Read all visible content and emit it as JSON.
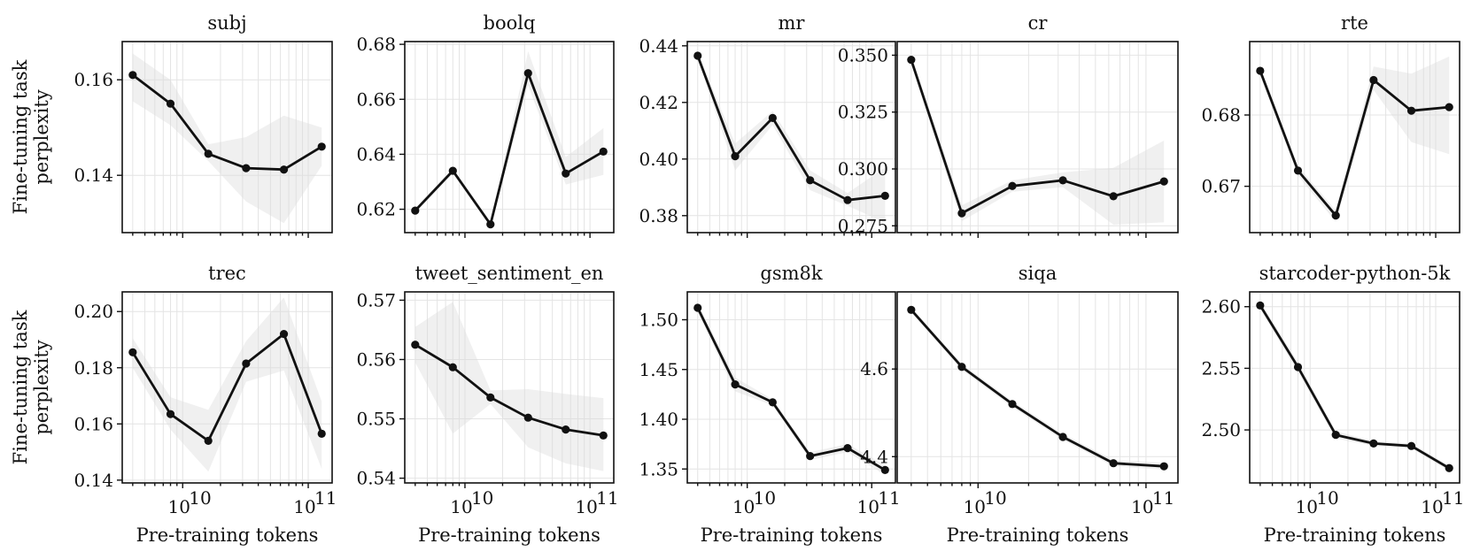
{
  "figure": {
    "ylabel": "Fine-tuning task\nperplexity",
    "xlabel": "Pre-training tokens"
  },
  "chart_data": [
    {
      "type": "line",
      "title": "subj",
      "xscale": "log",
      "x": [
        4000000000.0,
        8000000000.0,
        16000000000.0,
        32000000000.0,
        64000000000.0,
        128000000000.0
      ],
      "values": [
        0.161,
        0.155,
        0.1445,
        0.1415,
        0.1412,
        0.146
      ],
      "lower": [
        0.1555,
        0.1505,
        0.143,
        0.1345,
        0.13,
        0.142
      ],
      "upper": [
        0.1655,
        0.16,
        0.1465,
        0.148,
        0.1525,
        0.15
      ],
      "ylim": [
        0.128,
        0.168
      ],
      "yticks": [
        0.14,
        0.16
      ],
      "ytick_labels": [
        "0.14",
        "0.16"
      ]
    },
    {
      "type": "line",
      "title": "boolq",
      "xscale": "log",
      "x": [
        4000000000.0,
        8000000000.0,
        16000000000.0,
        32000000000.0,
        64000000000.0,
        128000000000.0
      ],
      "values": [
        0.6195,
        0.634,
        0.6145,
        0.6695,
        0.633,
        0.641
      ],
      "lower": [
        0.6185,
        0.633,
        0.614,
        0.665,
        0.629,
        0.6325
      ],
      "upper": [
        0.6205,
        0.635,
        0.615,
        0.6775,
        0.639,
        0.6495
      ],
      "ylim": [
        0.6115,
        0.681
      ],
      "yticks": [
        0.62,
        0.64,
        0.66,
        0.68
      ],
      "ytick_labels": [
        "0.62",
        "0.64",
        "0.66",
        "0.68"
      ]
    },
    {
      "type": "line",
      "title": "mr",
      "xscale": "log",
      "x": [
        4000000000.0,
        8000000000.0,
        16000000000.0,
        32000000000.0,
        64000000000.0,
        128000000000.0
      ],
      "values": [
        0.4365,
        0.401,
        0.4145,
        0.3925,
        0.3855,
        0.387
      ],
      "lower": [
        0.4355,
        0.396,
        0.412,
        0.389,
        0.3835,
        0.3775
      ],
      "upper": [
        0.4375,
        0.4055,
        0.417,
        0.396,
        0.388,
        0.397
      ],
      "ylim": [
        0.374,
        0.4415
      ],
      "yticks": [
        0.38,
        0.4,
        0.42,
        0.44
      ],
      "ytick_labels": [
        "0.38",
        "0.40",
        "0.42",
        "0.44"
      ]
    },
    {
      "type": "line",
      "title": "cr",
      "xscale": "log",
      "x": [
        4000000000.0,
        8000000000.0,
        16000000000.0,
        32000000000.0,
        64000000000.0,
        128000000000.0
      ],
      "values": [
        0.348,
        0.2805,
        0.2925,
        0.295,
        0.288,
        0.2945
      ],
      "lower": [
        0.346,
        0.277,
        0.29,
        0.292,
        0.2755,
        0.2765
      ],
      "upper": [
        0.35,
        0.284,
        0.295,
        0.2985,
        0.3005,
        0.3125
      ],
      "ylim": [
        0.272,
        0.356
      ],
      "yticks": [
        0.275,
        0.3,
        0.325,
        0.35
      ],
      "ytick_labels": [
        "0.275",
        "0.300",
        "0.325",
        "0.350"
      ]
    },
    {
      "type": "line",
      "title": "rte",
      "xscale": "log",
      "x": [
        4000000000.0,
        8000000000.0,
        16000000000.0,
        32000000000.0,
        64000000000.0,
        128000000000.0
      ],
      "values": [
        0.6862,
        0.6722,
        0.6659,
        0.6849,
        0.6806,
        0.6811
      ],
      "lower": [
        0.6855,
        0.6715,
        0.665,
        0.6835,
        0.6762,
        0.6745
      ],
      "upper": [
        0.6868,
        0.6728,
        0.6666,
        0.6868,
        0.6858,
        0.6882
      ],
      "ylim": [
        0.6635,
        0.6903
      ],
      "yticks": [
        0.67,
        0.68
      ],
      "ytick_labels": [
        "0.67",
        "0.68"
      ]
    },
    {
      "type": "line",
      "title": "trec",
      "xscale": "log",
      "x": [
        4000000000.0,
        8000000000.0,
        16000000000.0,
        32000000000.0,
        64000000000.0,
        128000000000.0
      ],
      "values": [
        0.1855,
        0.1635,
        0.154,
        0.1815,
        0.192,
        0.1565
      ],
      "lower": [
        0.18,
        0.158,
        0.143,
        0.175,
        0.179,
        0.144
      ],
      "upper": [
        0.1905,
        0.1695,
        0.165,
        0.1895,
        0.205,
        0.168
      ],
      "ylim": [
        0.139,
        0.207
      ],
      "yticks": [
        0.14,
        0.16,
        0.18,
        0.2
      ],
      "ytick_labels": [
        "0.14",
        "0.16",
        "0.18",
        "0.20"
      ]
    },
    {
      "type": "line",
      "title": "tweet_sentiment_en",
      "xscale": "log",
      "x": [
        4000000000.0,
        8000000000.0,
        16000000000.0,
        32000000000.0,
        64000000000.0,
        128000000000.0
      ],
      "values": [
        0.5625,
        0.5587,
        0.5536,
        0.5502,
        0.5482,
        0.5472
      ],
      "lower": [
        0.5595,
        0.5475,
        0.5525,
        0.5452,
        0.5425,
        0.5412
      ],
      "upper": [
        0.5655,
        0.5697,
        0.5548,
        0.555,
        0.5542,
        0.5535
      ],
      "ylim": [
        0.5392,
        0.5714
      ],
      "yticks": [
        0.54,
        0.55,
        0.56,
        0.57
      ],
      "ytick_labels": [
        "0.54",
        "0.55",
        "0.56",
        "0.57"
      ]
    },
    {
      "type": "line",
      "title": "gsm8k",
      "xscale": "log",
      "x": [
        4000000000.0,
        8000000000.0,
        16000000000.0,
        32000000000.0,
        64000000000.0,
        128000000000.0
      ],
      "values": [
        1.512,
        1.435,
        1.417,
        1.363,
        1.371,
        1.349
      ],
      "lower": [
        1.508,
        1.428,
        1.414,
        1.359,
        1.367,
        1.344
      ],
      "upper": [
        1.516,
        1.442,
        1.42,
        1.367,
        1.375,
        1.354
      ],
      "ylim": [
        1.336,
        1.528
      ],
      "yticks": [
        1.35,
        1.4,
        1.45,
        1.5
      ],
      "ytick_labels": [
        "1.35",
        "1.40",
        "1.45",
        "1.50"
      ]
    },
    {
      "type": "line",
      "title": "siqa",
      "xscale": "log",
      "x": [
        4000000000.0,
        8000000000.0,
        16000000000.0,
        32000000000.0,
        64000000000.0,
        128000000000.0
      ],
      "values": [
        4.735,
        4.605,
        4.52,
        4.445,
        4.385,
        4.378
      ],
      "lower": [
        4.73,
        4.598,
        4.513,
        4.438,
        4.378,
        4.37
      ],
      "upper": [
        4.74,
        4.612,
        4.527,
        4.452,
        4.392,
        4.386
      ],
      "ylim": [
        4.34,
        4.776
      ],
      "yticks": [
        4.4,
        4.6
      ],
      "ytick_labels": [
        "4.4",
        "4.6"
      ]
    },
    {
      "type": "line",
      "title": "starcoder-python-5k",
      "xscale": "log",
      "x": [
        4000000000.0,
        8000000000.0,
        16000000000.0,
        32000000000.0,
        64000000000.0,
        128000000000.0
      ],
      "values": [
        2.601,
        2.551,
        2.496,
        2.489,
        2.487,
        2.469
      ],
      "lower": [
        2.598,
        2.547,
        2.493,
        2.487,
        2.485,
        2.467
      ],
      "upper": [
        2.604,
        2.555,
        2.499,
        2.491,
        2.489,
        2.471
      ],
      "ylim": [
        2.457,
        2.612
      ],
      "yticks": [
        2.5,
        2.55,
        2.6
      ],
      "ytick_labels": [
        "2.50",
        "2.55",
        "2.60"
      ]
    }
  ]
}
